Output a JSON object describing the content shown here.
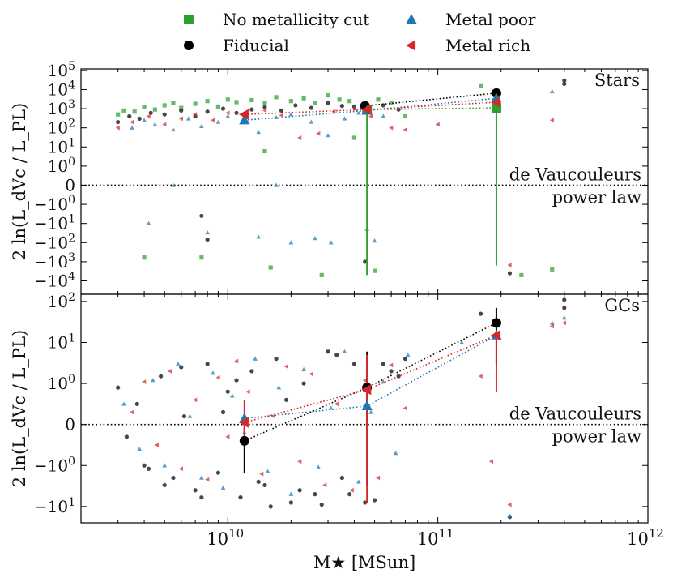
{
  "chart_data": {
    "type": "scatter",
    "legend": {
      "placement": "top-center",
      "entries": [
        {
          "name": "No metallicity cut",
          "marker": "square",
          "color": "#2ca02c"
        },
        {
          "name": "Fiducial",
          "marker": "circle",
          "color": "#000000"
        },
        {
          "name": "Metal poor",
          "marker": "triangle-up",
          "color": "#1f77b4"
        },
        {
          "name": "Metal rich",
          "marker": "triangle-left",
          "color": "#d62728"
        }
      ]
    },
    "x_axis": {
      "label": "M★ [MSun]",
      "scale": "log",
      "range": [
        2000000000.0,
        1000000000000.0
      ],
      "ticks": [
        {
          "value": 10000000000.0,
          "label": "10^10"
        },
        {
          "value": 100000000000.0,
          "label": "10^11"
        },
        {
          "value": 1000000000000.0,
          "label": "10^12"
        }
      ]
    },
    "ylabel": "2 ln(L_dVc / L_PL)",
    "y_scale": "symlog",
    "reference_line": {
      "y": 0,
      "style": "dotted",
      "label_above": "de Vaucouleurs",
      "label_below": "power law"
    },
    "panels": [
      {
        "title": "Stars",
        "ylim": [
          -50000.0,
          120000.0
        ],
        "y_ticks": [
          {
            "value": 100000,
            "label": "10^5"
          },
          {
            "value": 10000,
            "label": "10^4"
          },
          {
            "value": 1000,
            "label": "10^3"
          },
          {
            "value": 100,
            "label": "10^2"
          },
          {
            "value": 10,
            "label": "10^1"
          },
          {
            "value": 1,
            "label": "10^0"
          },
          {
            "value": 0,
            "label": "0"
          },
          {
            "value": -1,
            "label": "−10^0"
          },
          {
            "value": -10,
            "label": "−10^1"
          },
          {
            "value": -100,
            "label": "−10^2"
          },
          {
            "value": -1000,
            "label": "−10^3"
          },
          {
            "value": -10000,
            "label": "−10^4"
          }
        ],
        "binned": [
          {
            "series": "No metallicity cut",
            "x": [
              46000000000.0,
              190000000000.0
            ],
            "y": [
              900,
              1100
            ],
            "yerr_low": [
              -5000,
              -1600
            ],
            "yerr_high": [
              1500,
              1500
            ]
          },
          {
            "series": "Fiducial",
            "x": [
              45000000000.0,
              190000000000.0
            ],
            "y": [
              1400,
              6500
            ]
          },
          {
            "series": "Metal poor",
            "x": [
              12000000000.0,
              46000000000.0,
              190000000000.0
            ],
            "y": [
              250,
              800,
              3500
            ]
          },
          {
            "series": "Metal rich",
            "x": [
              12000000000.0,
              46000000000.0,
              190000000000.0
            ],
            "y": [
              500,
              900,
              2200
            ]
          }
        ],
        "scatter": [
          {
            "series": "No metallicity cut",
            "x": [
              3000000000.0,
              3200000000.0,
              3600000000.0,
              4000000000.0,
              4500000000.0,
              5000000000.0,
              5500000000.0,
              6000000000.0,
              7000000000.0,
              8000000000.0,
              9000000000.0,
              10000000000.0,
              11000000000.0,
              13000000000.0,
              15000000000.0,
              17000000000.0,
              20000000000.0,
              23000000000.0,
              26000000000.0,
              30000000000.0,
              34000000000.0,
              38000000000.0,
              52000000000.0,
              60000000000.0,
              70000000000.0,
              160000000000.0,
              15000000000.0,
              40000000000.0,
              4000000000.0,
              7500000000.0,
              16000000000.0,
              28000000000.0,
              50000000000.0,
              250000000000.0,
              350000000000.0
            ],
            "y": [
              500,
              800,
              700,
              1200,
              900,
              1500,
              2000,
              1100,
              1800,
              2500,
              1300,
              3000,
              2200,
              2800,
              1900,
              4000,
              2500,
              3500,
              2000,
              5000,
              3000,
              2500,
              3000,
              2000,
              400,
              15000,
              6,
              30,
              -600,
              -600,
              -2000,
              -5000,
              -3000,
              -5000,
              -2500
            ]
          },
          {
            "series": "Fiducial",
            "x": [
              3000000000.0,
              3400000000.0,
              3800000000.0,
              4300000000.0,
              5000000000.0,
              6000000000.0,
              7000000000.0,
              8000000000.0,
              9500000000.0,
              11000000000.0,
              13000000000.0,
              15000000000.0,
              18000000000.0,
              21000000000.0,
              25000000000.0,
              30000000000.0,
              35000000000.0,
              40000000000.0,
              55000000000.0,
              65000000000.0,
              7500000000.0,
              8000000000.0,
              45000000000.0,
              220000000000.0,
              400000000000.0,
              400000000000.0
            ],
            "y": [
              200,
              400,
              300,
              600,
              500,
              800,
              400,
              700,
              1000,
              600,
              900,
              1200,
              800,
              1500,
              1100,
              2000,
              1400,
              1300,
              1500,
              900,
              -4,
              -70,
              -1000,
              -4000,
              30000,
              20000
            ]
          },
          {
            "series": "Metal poor",
            "x": [
              3500000000.0,
              4000000000.0,
              4500000000.0,
              5500000000.0,
              6500000000.0,
              7500000000.0,
              9000000000.0,
              10000000000.0,
              12000000000.0,
              14000000000.0,
              17000000000.0,
              20000000000.0,
              25000000000.0,
              30000000000.0,
              36000000000.0,
              42000000000.0,
              55000000000.0,
              5500000000.0,
              17000000000.0,
              4200000000.0,
              8000000000.0,
              14000000000.0,
              20000000000.0,
              26000000000.0,
              31000000000.0,
              46000000000.0,
              50000000000.0,
              350000000000.0
            ],
            "y": [
              100,
              250,
              150,
              80,
              300,
              120,
              200,
              400,
              250,
              60,
              350,
              500,
              200,
              40,
              300,
              600,
              400,
              0,
              0,
              -10,
              -30,
              -50,
              -100,
              -60,
              -100,
              -20,
              -80,
              8000
            ]
          },
          {
            "series": "Metal rich",
            "x": [
              3000000000.0,
              3500000000.0,
              4200000000.0,
              5000000000.0,
              6000000000.0,
              7000000000.0,
              8500000000.0,
              10000000000.0,
              12000000000.0,
              15000000000.0,
              18000000000.0,
              22000000000.0,
              27000000000.0,
              32000000000.0,
              40000000000.0,
              48000000000.0,
              60000000000.0,
              70000000000.0,
              100000000000.0,
              220000000000.0,
              350000000000.0
            ],
            "y": [
              100,
              200,
              400,
              150,
              300,
              500,
              250,
              600,
              350,
              800,
              450,
              30,
              50,
              700,
              1000,
              400,
              100,
              80,
              150,
              -1500,
              250
            ]
          }
        ]
      },
      {
        "title": "GCs",
        "ylim": [
          -25,
          150
        ],
        "y_ticks": [
          {
            "value": 100,
            "label": "10^2"
          },
          {
            "value": 10,
            "label": "10^1"
          },
          {
            "value": 1,
            "label": "10^0"
          },
          {
            "value": 0,
            "label": "0"
          },
          {
            "value": -1,
            "label": "−10^0"
          },
          {
            "value": -10,
            "label": "−10^1"
          }
        ],
        "binned": [
          {
            "series": "Fiducial",
            "x": [
              12000000000.0,
              46000000000.0,
              190000000000.0
            ],
            "y": [
              -0.4,
              0.9,
              30
            ],
            "yerr_low": [
              -1.5,
              -3,
              3
            ],
            "yerr_high": [
              0.1,
              6,
              70
            ]
          },
          {
            "series": "Metal poor",
            "x": [
              12000000000.0,
              46000000000.0,
              190000000000.0
            ],
            "y": [
              0.15,
              0.45,
              15
            ]
          },
          {
            "series": "Metal rich",
            "x": [
              12000000000.0,
              46000000000.0,
              190000000000.0
            ],
            "y": [
              0.05,
              0.85,
              15
            ],
            "yerr_low": [
              -0.5,
              -8,
              0.8
            ],
            "yerr_high": [
              0.6,
              5,
              20
            ]
          }
        ],
        "scatter": [
          {
            "series": "Fiducial",
            "x": [
              3000000000.0,
              3300000000.0,
              3700000000.0,
              4200000000.0,
              4800000000.0,
              5500000000.0,
              6200000000.0,
              7000000000.0,
              8000000000.0,
              9000000000.0,
              10000000000.0,
              11500000000.0,
              13000000000.0,
              15000000000.0,
              17000000000.0,
              20000000000.0,
              23000000000.0,
              26000000000.0,
              30000000000.0,
              35000000000.0,
              40000000000.0,
              50000000000.0,
              60000000000.0,
              70000000000.0,
              4000000000.0,
              5000000000.0,
              6000000000.0,
              7500000000.0,
              9500000000.0,
              11000000000.0,
              14000000000.0,
              16000000000.0,
              19000000000.0,
              22000000000.0,
              28000000000.0,
              33000000000.0,
              38000000000.0,
              45000000000.0,
              55000000000.0,
              65000000000.0,
              160000000000.0,
              220000000000.0,
              400000000000.0,
              400000000000.0
            ],
            "y": [
              0.9,
              -0.3,
              0.5,
              -1.2,
              1.5,
              -2,
              0.2,
              -4,
              3,
              -1.5,
              0.8,
              -6,
              2,
              -3,
              4,
              -8,
              1,
              -5,
              6,
              -2,
              3,
              -7,
              2,
              4,
              -1,
              -3,
              2.5,
              -6,
              0.3,
              1.2,
              -2.5,
              -10,
              0.6,
              -4,
              -9,
              5,
              -5,
              -8,
              3,
              1.5,
              50,
              -18,
              70,
              110
            ]
          },
          {
            "series": "Metal poor",
            "x": [
              3200000000.0,
              3800000000.0,
              4400000000.0,
              5000000000.0,
              5800000000.0,
              6600000000.0,
              7500000000.0,
              8500000000.0,
              9500000000.0,
              10500000000.0,
              12000000000.0,
              13500000000.0,
              15500000000.0,
              17500000000.0,
              20000000000.0,
              23000000000.0,
              27000000000.0,
              31000000000.0,
              36000000000.0,
              42000000000.0,
              48000000000.0,
              55000000000.0,
              63000000000.0,
              72000000000.0,
              130000000000.0,
              350000000000.0,
              400000000000.0,
              220000000000.0
            ],
            "y": [
              0.5,
              -0.6,
              1.2,
              -1,
              3,
              0.2,
              -2,
              1.8,
              -3.5,
              0.7,
              -0.2,
              4,
              -1.4,
              0.9,
              -5,
              2.2,
              -1.1,
              0.4,
              6,
              -2.5,
              0.3,
              1.1,
              -0.7,
              5,
              10,
              30,
              40,
              -17
            ]
          },
          {
            "series": "Metal rich",
            "x": [
              3500000000.0,
              4000000000.0,
              4600000000.0,
              5300000000.0,
              6000000000.0,
              7000000000.0,
              8000000000.0,
              9000000000.0,
              10000000000.0,
              11000000000.0,
              12500000000.0,
              14500000000.0,
              16500000000.0,
              19000000000.0,
              22000000000.0,
              25000000000.0,
              29000000000.0,
              33000000000.0,
              39000000000.0,
              45000000000.0,
              52000000000.0,
              60000000000.0,
              70000000000.0,
              160000000000.0,
              180000000000.0,
              220000000000.0,
              350000000000.0,
              400000000000.0
            ],
            "y": [
              0.3,
              1.1,
              -0.5,
              2,
              -1.2,
              0.6,
              -2.2,
              1.4,
              -0.3,
              3.5,
              0.8,
              -1.6,
              0.2,
              2.6,
              -0.9,
              1.7,
              -3,
              0.5,
              -4,
              1.2,
              -2,
              2.8,
              0.4,
              1.5,
              -0.9,
              -9,
              25,
              30
            ]
          }
        ]
      }
    ]
  }
}
